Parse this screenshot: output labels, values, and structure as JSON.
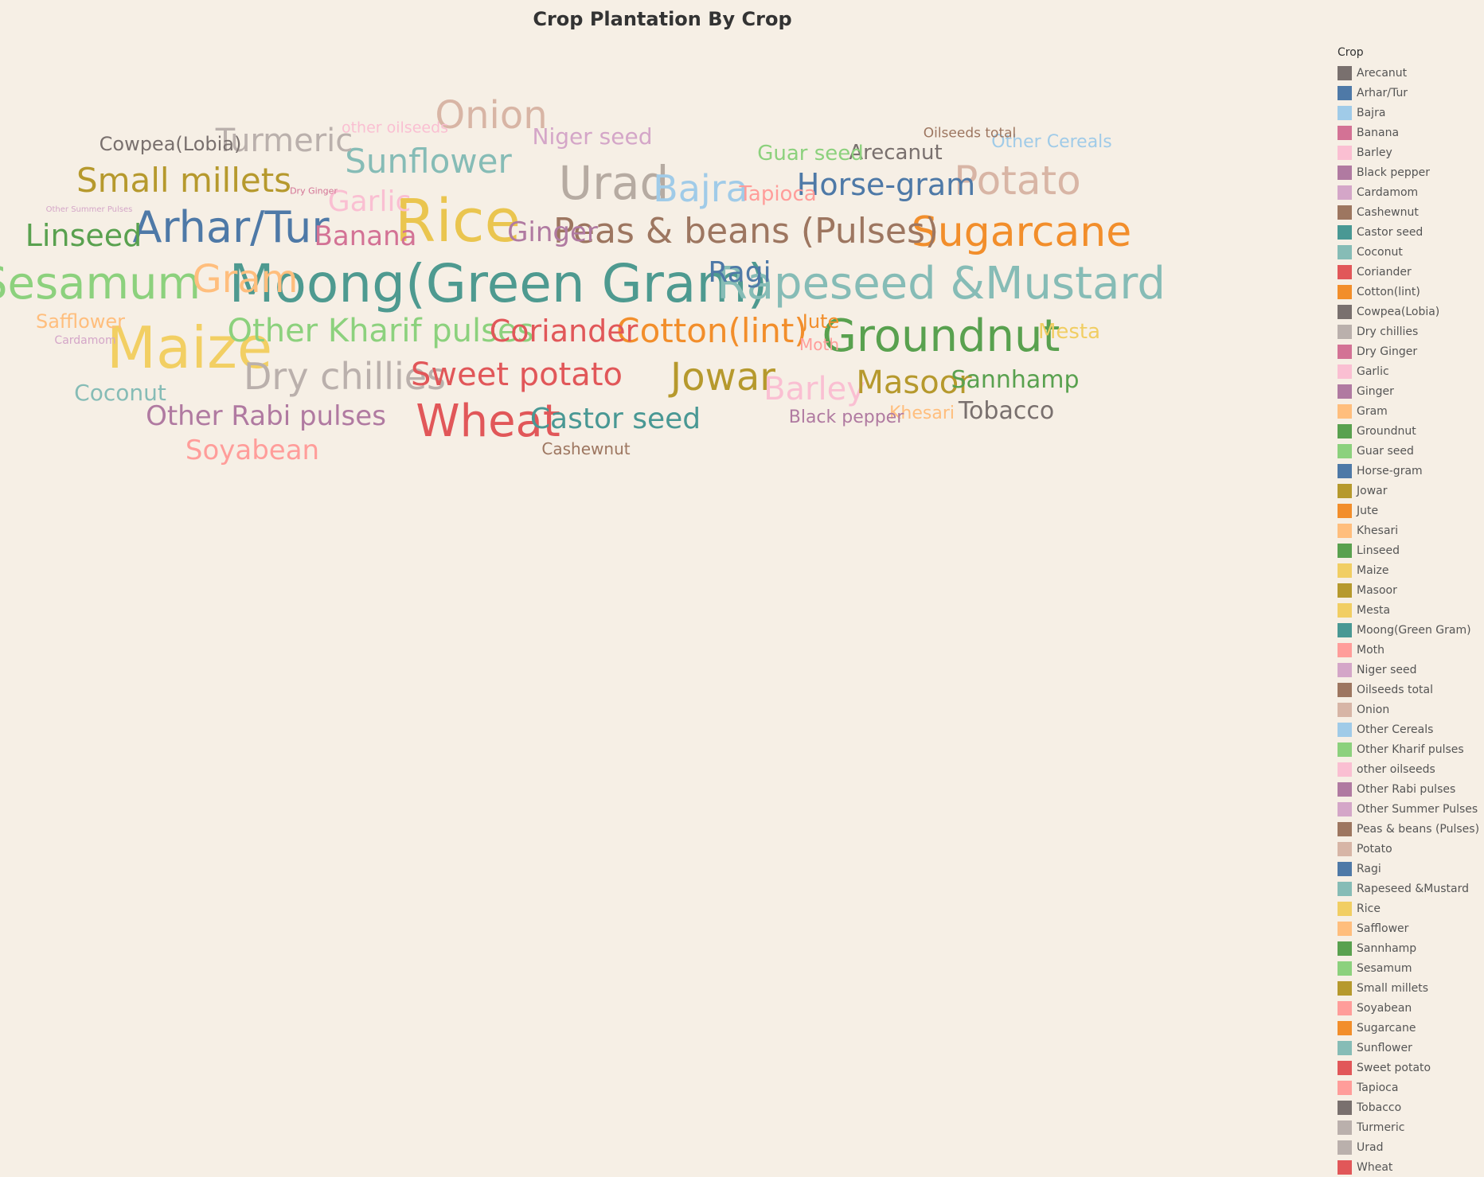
{
  "chart_data": {
    "type": "word-cloud",
    "title": "Crop Plantation By Crop",
    "legend_title": "Crop",
    "legend_placement": "right",
    "words": [
      {
        "text": "Moong(Green Gram)",
        "weight": 66,
        "color": "#4e9a90"
      },
      {
        "text": "Rice",
        "weight": 74,
        "color": "#eac54f"
      },
      {
        "text": "Maize",
        "weight": 72,
        "color": "#f2cf63"
      },
      {
        "text": "Wheat",
        "weight": 56,
        "color": "#e15759"
      },
      {
        "text": "Groundnut",
        "weight": 56,
        "color": "#59a14f"
      },
      {
        "text": "Sesamum",
        "weight": 56,
        "color": "#8cd17d"
      },
      {
        "text": "Rapeseed &Mustard",
        "weight": 56,
        "color": "#86bcb6"
      },
      {
        "text": "Urad",
        "weight": 58,
        "color": "#b6aba2"
      },
      {
        "text": "Arhar/Tur",
        "weight": 54,
        "color": "#4e79a7"
      },
      {
        "text": "Sugarcane",
        "weight": 52,
        "color": "#f28e2b"
      },
      {
        "text": "Potato",
        "weight": 50,
        "color": "#d8b5a5"
      },
      {
        "text": "Onion",
        "weight": 48,
        "color": "#d8b5a5"
      },
      {
        "text": "Jowar",
        "weight": 48,
        "color": "#b6992d"
      },
      {
        "text": "Gram",
        "weight": 48,
        "color": "#ffbe7d"
      },
      {
        "text": "Bajra",
        "weight": 46,
        "color": "#a0cbe8"
      },
      {
        "text": "Dry chillies",
        "weight": 46,
        "color": "#bab0ac"
      },
      {
        "text": "Peas & beans (Pulses)",
        "weight": 44,
        "color": "#9d7660"
      },
      {
        "text": "Cotton(lint)",
        "weight": 42,
        "color": "#f28e2b"
      },
      {
        "text": "Small millets",
        "weight": 42,
        "color": "#b6992d"
      },
      {
        "text": "Sunflower",
        "weight": 42,
        "color": "#86bcb6"
      },
      {
        "text": "Turmeric",
        "weight": 40,
        "color": "#bab0ac"
      },
      {
        "text": "Barley",
        "weight": 40,
        "color": "#fabfd2"
      },
      {
        "text": "Masoor",
        "weight": 40,
        "color": "#b6992d"
      },
      {
        "text": "Sweet potato",
        "weight": 40,
        "color": "#e15759"
      },
      {
        "text": "Other Kharif pulses",
        "weight": 40,
        "color": "#8cd17d"
      },
      {
        "text": "Horse-gram",
        "weight": 38,
        "color": "#4e79a7"
      },
      {
        "text": "Linseed",
        "weight": 38,
        "color": "#59a14f"
      },
      {
        "text": "Coriander",
        "weight": 38,
        "color": "#e15759"
      },
      {
        "text": "Ragi",
        "weight": 36,
        "color": "#4e79a7"
      },
      {
        "text": "Garlic",
        "weight": 36,
        "color": "#fabfd2"
      },
      {
        "text": "Castor seed",
        "weight": 36,
        "color": "#499894"
      },
      {
        "text": "Other Rabi pulses",
        "weight": 34,
        "color": "#b07aa1"
      },
      {
        "text": "Soyabean",
        "weight": 34,
        "color": "#ff9d9a"
      },
      {
        "text": "Ginger",
        "weight": 34,
        "color": "#b07aa1"
      },
      {
        "text": "Banana",
        "weight": 34,
        "color": "#d37295"
      },
      {
        "text": "Sannhamp",
        "weight": 30,
        "color": "#59a14f"
      },
      {
        "text": "Tobacco",
        "weight": 30,
        "color": "#79706e"
      },
      {
        "text": "Coconut",
        "weight": 28,
        "color": "#86bcb6"
      },
      {
        "text": "Niger seed",
        "weight": 28,
        "color": "#d4a6c8"
      },
      {
        "text": "Arecanut",
        "weight": 26,
        "color": "#79706e"
      },
      {
        "text": "Mesta",
        "weight": 26,
        "color": "#f1ce63"
      },
      {
        "text": "Tapioca",
        "weight": 26,
        "color": "#ff9d9a"
      },
      {
        "text": "Guar seed",
        "weight": 26,
        "color": "#8cd17d"
      },
      {
        "text": "Cowpea(Lobia)",
        "weight": 24,
        "color": "#79706e"
      },
      {
        "text": "Safflower",
        "weight": 24,
        "color": "#ffbe7d"
      },
      {
        "text": "Jute",
        "weight": 24,
        "color": "#f28e2b"
      },
      {
        "text": "Other Cereals",
        "weight": 22,
        "color": "#a0cbe8"
      },
      {
        "text": "Khesari",
        "weight": 22,
        "color": "#ffbe7d"
      },
      {
        "text": "Black pepper",
        "weight": 22,
        "color": "#b07aa1"
      },
      {
        "text": "Moth",
        "weight": 20,
        "color": "#ff9d9a"
      },
      {
        "text": "Cashewnut",
        "weight": 20,
        "color": "#9d7660"
      },
      {
        "text": "other oilseeds",
        "weight": 19,
        "color": "#fabfd2"
      },
      {
        "text": "Oilseeds total",
        "weight": 17,
        "color": "#9d7660"
      },
      {
        "text": "Cardamom",
        "weight": 14,
        "color": "#d4a6c8"
      },
      {
        "text": "Dry Ginger",
        "weight": 11,
        "color": "#d37295"
      },
      {
        "text": "Other Summer Pulses",
        "weight": 10,
        "color": "#d4a6c8"
      }
    ],
    "legend": [
      {
        "label": "Arecanut",
        "color": "#79706e"
      },
      {
        "label": "Arhar/Tur",
        "color": "#4e79a7"
      },
      {
        "label": "Bajra",
        "color": "#a0cbe8"
      },
      {
        "label": "Banana",
        "color": "#d37295"
      },
      {
        "label": "Barley",
        "color": "#fabfd2"
      },
      {
        "label": "Black pepper",
        "color": "#b07aa1"
      },
      {
        "label": "Cardamom",
        "color": "#d4a6c8"
      },
      {
        "label": "Cashewnut",
        "color": "#9d7660"
      },
      {
        "label": "Castor seed",
        "color": "#499894"
      },
      {
        "label": "Coconut",
        "color": "#86bcb6"
      },
      {
        "label": "Coriander",
        "color": "#e15759"
      },
      {
        "label": "Cotton(lint)",
        "color": "#f28e2b"
      },
      {
        "label": "Cowpea(Lobia)",
        "color": "#79706e"
      },
      {
        "label": "Dry chillies",
        "color": "#bab0ac"
      },
      {
        "label": "Dry Ginger",
        "color": "#d37295"
      },
      {
        "label": "Garlic",
        "color": "#fabfd2"
      },
      {
        "label": "Ginger",
        "color": "#b07aa1"
      },
      {
        "label": "Gram",
        "color": "#ffbe7d"
      },
      {
        "label": "Groundnut",
        "color": "#59a14f"
      },
      {
        "label": "Guar seed",
        "color": "#8cd17d"
      },
      {
        "label": "Horse-gram",
        "color": "#4e79a7"
      },
      {
        "label": "Jowar",
        "color": "#b6992d"
      },
      {
        "label": "Jute",
        "color": "#f28e2b"
      },
      {
        "label": "Khesari",
        "color": "#ffbe7d"
      },
      {
        "label": "Linseed",
        "color": "#59a14f"
      },
      {
        "label": "Maize",
        "color": "#f1ce63"
      },
      {
        "label": "Masoor",
        "color": "#b6992d"
      },
      {
        "label": "Mesta",
        "color": "#f1ce63"
      },
      {
        "label": "Moong(Green Gram)",
        "color": "#499894"
      },
      {
        "label": "Moth",
        "color": "#ff9d9a"
      },
      {
        "label": "Niger seed",
        "color": "#d4a6c8"
      },
      {
        "label": "Oilseeds total",
        "color": "#9d7660"
      },
      {
        "label": "Onion",
        "color": "#d7b5a6"
      },
      {
        "label": "Other Cereals",
        "color": "#a0cbe8"
      },
      {
        "label": "Other Kharif pulses",
        "color": "#8cd17d"
      },
      {
        "label": "other oilseeds",
        "color": "#fabfd2"
      },
      {
        "label": "Other Rabi pulses",
        "color": "#b07aa1"
      },
      {
        "label": "Other Summer Pulses",
        "color": "#d4a6c8"
      },
      {
        "label": "Peas & beans (Pulses)",
        "color": "#9d7660"
      },
      {
        "label": "Potato",
        "color": "#d7b5a6"
      },
      {
        "label": "Ragi",
        "color": "#4e79a7"
      },
      {
        "label": "Rapeseed &Mustard",
        "color": "#86bcb6"
      },
      {
        "label": "Rice",
        "color": "#f1ce63"
      },
      {
        "label": "Safflower",
        "color": "#ffbe7d"
      },
      {
        "label": "Sannhamp",
        "color": "#59a14f"
      },
      {
        "label": "Sesamum",
        "color": "#8cd17d"
      },
      {
        "label": "Small millets",
        "color": "#b6992d"
      },
      {
        "label": "Soyabean",
        "color": "#ff9d9a"
      },
      {
        "label": "Sugarcane",
        "color": "#f28e2b"
      },
      {
        "label": "Sunflower",
        "color": "#86bcb6"
      },
      {
        "label": "Sweet potato",
        "color": "#e15759"
      },
      {
        "label": "Tapioca",
        "color": "#ff9d9a"
      },
      {
        "label": "Tobacco",
        "color": "#79706e"
      },
      {
        "label": "Turmeric",
        "color": "#bab0ac"
      },
      {
        "label": "Urad",
        "color": "#bab0ac"
      },
      {
        "label": "Wheat",
        "color": "#e15759"
      }
    ]
  }
}
